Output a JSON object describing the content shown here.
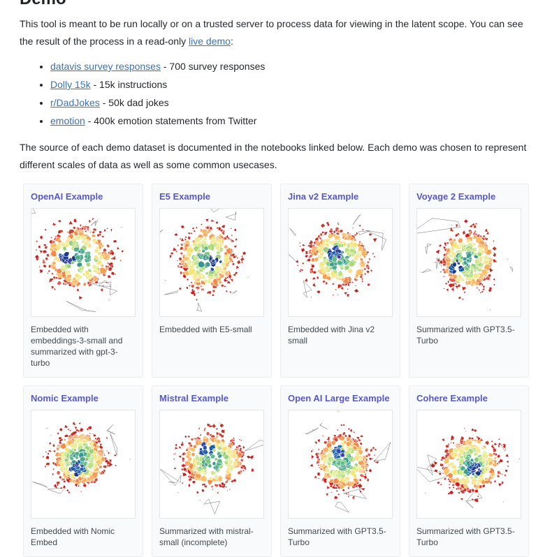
{
  "heading": "Demo",
  "intro": {
    "text_before": "This tool is meant to be run locally or on a trusted server to process data for viewing in the latent scope. You can see the result of the process in a read-only ",
    "link_text": "live demo",
    "text_after": ":"
  },
  "dataset_list": {
    "items": [
      {
        "link": "datavis survey responses",
        "text": " - 700 survey responses"
      },
      {
        "link": "Dolly 15k",
        "text": " - 15k instructions"
      },
      {
        "link": "r/DadJokes",
        "text": " - 50k dad jokes"
      },
      {
        "link": "emotion",
        "text": " - 400k emotion statements from Twitter"
      }
    ]
  },
  "source_paragraph": "The source of each demo dataset is documented in the notebooks linked below. Each demo was chosen to represent different scales of data as well as some common usecases.",
  "cards": [
    {
      "title": "OpenAI Example",
      "caption": "Embedded with embeddings-3-small and summarized with gpt-3-turbo"
    },
    {
      "title": "E5 Example",
      "caption": "Embedded with E5-small"
    },
    {
      "title": "Jina v2 Example",
      "caption": "Embedded with Jina v2 small"
    },
    {
      "title": "Voyage 2 Example",
      "caption": "Summarized with GPT3.5-Turbo"
    },
    {
      "title": "Nomic Example",
      "caption": "Embedded with Nomic Embed"
    },
    {
      "title": "Mistral Example",
      "caption": "Summarized with mistral-small (incomplete)"
    },
    {
      "title": "Open AI Large Example",
      "caption": "Summarized with GPT3.5-Turbo"
    },
    {
      "title": "Cohere Example",
      "caption": "Summarized with GPT3.5-Turbo"
    }
  ],
  "colors": {
    "link": "#3a72b8",
    "card_title": "#5757cf",
    "body_text": "#24292f",
    "caption_text": "#414950",
    "card_background": "#f9fafb",
    "card_border": "#ebedf0"
  }
}
